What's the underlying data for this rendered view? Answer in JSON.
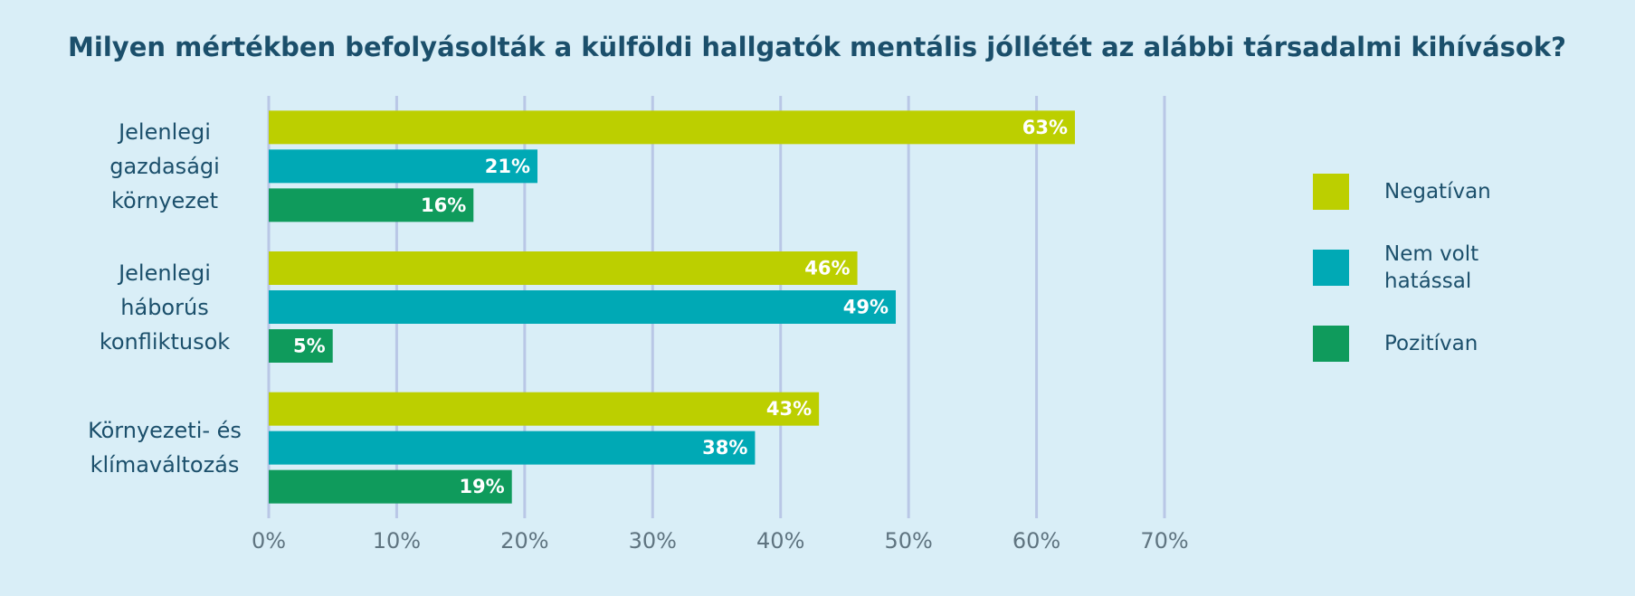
{
  "chart_data": {
    "type": "bar",
    "orientation": "horizontal",
    "title": "Milyen mértékben befolyásolták a külföldi hallgatók mentális jóllétét az alábbi társadalmi kihívások?",
    "categories": [
      "Jelenlegi gazdasági környezet",
      "Jelenlegi háborús konfliktusok",
      "Környezeti- és klímaváltozás"
    ],
    "series": [
      {
        "name": "Negatívan",
        "color": "#bccf00",
        "values": [
          63,
          46,
          43
        ],
        "value_labels": [
          "63%",
          "46%",
          "43%"
        ]
      },
      {
        "name": "Nem volt hatással",
        "color": "#00a9b5",
        "values": [
          21,
          49,
          38
        ],
        "value_labels": [
          "21%",
          "49%",
          "38%"
        ]
      },
      {
        "name": "Pozitívan",
        "color": "#0f9b5c",
        "values": [
          16,
          5,
          19
        ],
        "value_labels": [
          "16%",
          "5%",
          "19%"
        ]
      }
    ],
    "xlim": [
      0,
      70
    ],
    "xticks": [
      {
        "value": 0,
        "label": "0%"
      },
      {
        "value": 10,
        "label": "10%"
      },
      {
        "value": 20,
        "label": "20%"
      },
      {
        "value": 30,
        "label": "30%"
      },
      {
        "value": 40,
        "label": "40%"
      },
      {
        "value": 50,
        "label": "50%"
      },
      {
        "value": 60,
        "label": "60%"
      },
      {
        "value": 70,
        "label": "70%"
      }
    ],
    "grid": true,
    "legend": "right"
  }
}
